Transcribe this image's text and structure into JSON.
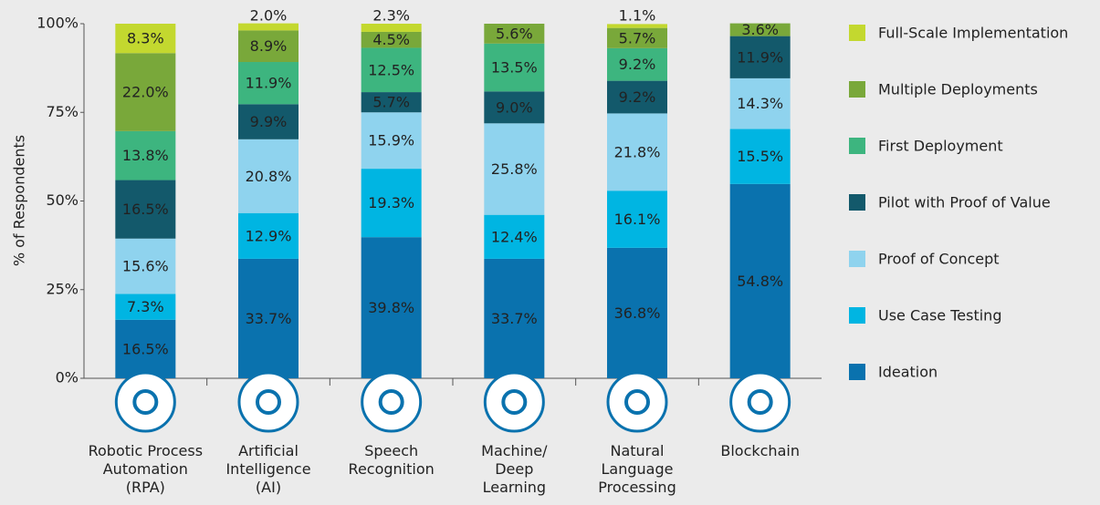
{
  "chart_data": {
    "type": "stacked-bar",
    "y_label": "% of Respondents",
    "categories": [
      "Robotic Process\nAutomation\n(RPA)",
      "Artificial\nIntelligence\n(AI)",
      "Speech\nRecognition",
      "Machine/\nDeep\nLearning",
      "Natural\nLanguage\nProcessing",
      "Blockchain"
    ],
    "ylim": [
      0,
      100
    ],
    "yticks": [
      {
        "value": 0,
        "label": "0%"
      },
      {
        "value": 25,
        "label": "25%"
      },
      {
        "value": 50,
        "label": "50%"
      },
      {
        "value": 75,
        "label": "75%"
      },
      {
        "value": 100,
        "label": "100%"
      }
    ],
    "series": [
      {
        "name": "Ideation",
        "color": "#0a72ae",
        "values": [
          16.5,
          33.7,
          39.8,
          33.7,
          36.8,
          54.8
        ],
        "value_labels": [
          "16.5%",
          "33.7%",
          "39.8%",
          "33.7%",
          "36.8%",
          "54.8%"
        ]
      },
      {
        "name": "Use Case Testing",
        "color": "#00b5e2",
        "values": [
          7.3,
          12.9,
          19.3,
          12.4,
          16.1,
          15.5
        ],
        "value_labels": [
          "7.3%",
          "12.9%",
          "19.3%",
          "12.4%",
          "16.1%",
          "15.5%"
        ]
      },
      {
        "name": "Proof of Concept",
        "color": "#8fd3ee",
        "values": [
          15.6,
          20.8,
          15.9,
          25.8,
          21.8,
          14.3
        ],
        "value_labels": [
          "15.6%",
          "20.8%",
          "15.9%",
          "25.8%",
          "21.8%",
          "14.3%"
        ]
      },
      {
        "name": "Pilot with Proof of Value",
        "color": "#13596b",
        "values": [
          16.5,
          9.9,
          5.7,
          9.0,
          9.2,
          11.9
        ],
        "value_labels": [
          "16.5%",
          "9.9%",
          "5.7%",
          "9.0%",
          "9.2%",
          "11.9%"
        ]
      },
      {
        "name": "First Deployment",
        "color": "#3db57f",
        "values": [
          13.8,
          11.9,
          12.5,
          13.5,
          9.2,
          null
        ],
        "value_labels": [
          "13.8%",
          "11.9%",
          "12.5%",
          "13.5%",
          "9.2%",
          null
        ]
      },
      {
        "name": "Multiple Deployments",
        "color": "#79a83a",
        "values": [
          22.0,
          8.9,
          4.5,
          5.6,
          5.7,
          3.6
        ],
        "value_labels": [
          "22.0%",
          "8.9%",
          "4.5%",
          "5.6%",
          "5.7%",
          "3.6%"
        ]
      },
      {
        "name": "Full-Scale Implementation",
        "color": "#c3d82f",
        "values": [
          8.3,
          2.0,
          2.3,
          null,
          1.1,
          null
        ],
        "value_labels": [
          "8.3%",
          "2.0%",
          "2.3%",
          null,
          "1.1%",
          null
        ]
      }
    ]
  }
}
